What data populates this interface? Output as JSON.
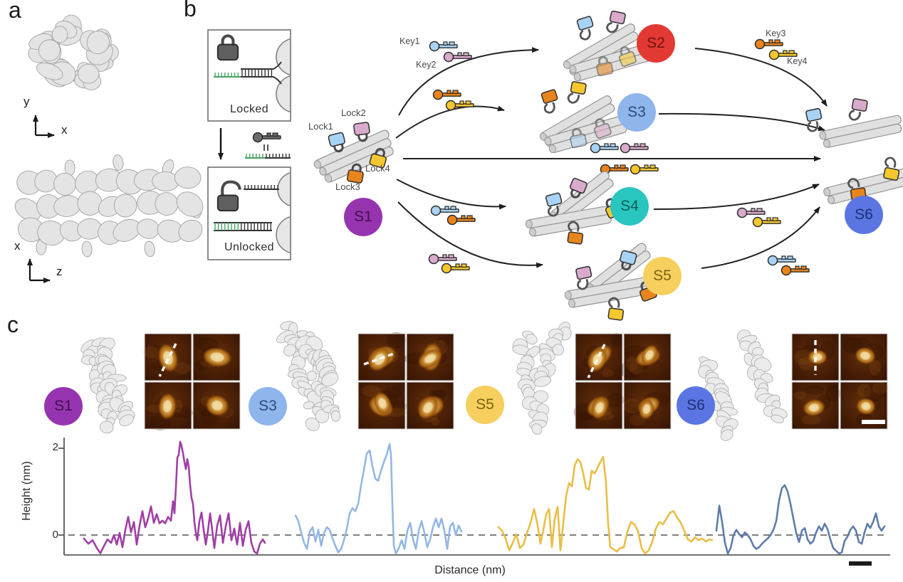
{
  "figure": {
    "panel_a_label": "a",
    "panel_b_label": "b",
    "panel_c_label": "c",
    "background": "#ffffff"
  },
  "panel_a": {
    "top_axes": {
      "vertical": "y",
      "horizontal": "x"
    },
    "bottom_axes": {
      "vertical": "x",
      "horizontal": "z"
    }
  },
  "panel_b": {
    "locked_box": {
      "label": "Locked"
    },
    "unlocked_box": {
      "label": "Unlocked"
    },
    "key_legend_equivalence": "=",
    "toehold_color": "#47a566",
    "locks": [
      {
        "label": "Lock1",
        "color": "#a9d3f4"
      },
      {
        "label": "Lock2",
        "color": "#d8aacb"
      },
      {
        "label": "Lock3",
        "color": "#e8841c"
      },
      {
        "label": "Lock4",
        "color": "#f4c72e"
      }
    ],
    "keys": [
      {
        "label": "Key1",
        "color": "#a9d3f4"
      },
      {
        "label": "Key2",
        "color": "#d8aacb"
      },
      {
        "label": "Key3",
        "color": "#e8841c"
      },
      {
        "label": "Key4",
        "color": "#f4c72e"
      }
    ],
    "states": [
      {
        "id": "S1",
        "color": "#9634af",
        "label_color": "#40104d"
      },
      {
        "id": "S2",
        "color": "#e23a33",
        "label_color": "#6e1511"
      },
      {
        "id": "S3",
        "color": "#8fb5ed",
        "label_color": "#2c4a7c"
      },
      {
        "id": "S4",
        "color": "#29c5bf",
        "label_color": "#0b5f5b"
      },
      {
        "id": "S5",
        "color": "#f6cf5e",
        "label_color": "#7c6011"
      },
      {
        "id": "S6",
        "color": "#5b76e2",
        "label_color": "#1d2f72"
      }
    ]
  },
  "panel_c": {
    "afm_scalebar": true,
    "profile_scalebar": true
  },
  "chart_data": {
    "type": "line",
    "title": "",
    "xlabel": "Distance (nm)",
    "ylabel": "Height (nm)",
    "ytick_labels": [
      "2",
      "0"
    ],
    "ytick_values": [
      2,
      0
    ],
    "ylim": [
      -0.8,
      2.4
    ],
    "zero_baseline_dashed": true,
    "x_scalebar": true,
    "legend": "none",
    "series": [
      {
        "name": "S1",
        "color": "#a03fa5",
        "points": [
          [
            118,
            -0.08
          ],
          [
            124,
            -0.2
          ],
          [
            130,
            -0.12
          ],
          [
            136,
            -0.3
          ],
          [
            141,
            -0.42
          ],
          [
            146,
            -0.25
          ],
          [
            151,
            -0.1
          ],
          [
            156,
            -0.18
          ],
          [
            160,
            0.0
          ],
          [
            164,
            -0.22
          ],
          [
            168,
            0.05
          ],
          [
            172,
            -0.28
          ],
          [
            176,
            0.12
          ],
          [
            180,
            0.42
          ],
          [
            184,
            0.06
          ],
          [
            188,
            0.3
          ],
          [
            192,
            -0.22
          ],
          [
            196,
            0.22
          ],
          [
            200,
            0.55
          ],
          [
            204,
            0.18
          ],
          [
            208,
            0.38
          ],
          [
            212,
            0.66
          ],
          [
            216,
            0.28
          ],
          [
            220,
            0.48
          ],
          [
            224,
            0.27
          ],
          [
            228,
            0.33
          ],
          [
            232,
            0.27
          ],
          [
            236,
            0.42
          ],
          [
            240,
            0.33
          ],
          [
            243,
            0.78
          ],
          [
            245,
            0.5
          ],
          [
            247,
            1.1
          ],
          [
            249,
            1.78
          ],
          [
            251,
            1.85
          ],
          [
            253,
            2.15
          ],
          [
            255,
            2.05
          ],
          [
            257,
            1.88
          ],
          [
            259,
            1.68
          ],
          [
            261,
            1.52
          ],
          [
            263,
            1.75
          ],
          [
            265,
            1.58
          ],
          [
            267,
            1.15
          ],
          [
            269,
            0.85
          ],
          [
            271,
            0.72
          ],
          [
            273,
            0.3
          ],
          [
            275,
            0.05
          ],
          [
            277,
            -0.12
          ],
          [
            280,
            0.32
          ],
          [
            283,
            0.52
          ],
          [
            286,
            0.12
          ],
          [
            289,
            -0.22
          ],
          [
            292,
            0.1
          ],
          [
            295,
            0.5
          ],
          [
            298,
            0.12
          ],
          [
            301,
            -0.3
          ],
          [
            305,
            0.22
          ],
          [
            309,
            0.45
          ],
          [
            313,
            -0.18
          ],
          [
            317,
            0.2
          ],
          [
            321,
            0.5
          ],
          [
            325,
            -0.12
          ],
          [
            329,
            0.15
          ],
          [
            333,
            -0.22
          ],
          [
            337,
            0.28
          ],
          [
            341,
            -0.25
          ],
          [
            345,
            0.12
          ],
          [
            349,
            0.32
          ],
          [
            353,
            -0.18
          ],
          [
            357,
            -0.38
          ],
          [
            361,
            -0.48
          ],
          [
            365,
            -0.2
          ],
          [
            369,
            -0.1
          ],
          [
            372,
            -0.18
          ]
        ]
      },
      {
        "name": "S3",
        "color": "#94b7e4",
        "points": [
          [
            415,
            0.45
          ],
          [
            419,
            0.32
          ],
          [
            423,
            0.05
          ],
          [
            427,
            -0.18
          ],
          [
            431,
            -0.32
          ],
          [
            435,
            0.08
          ],
          [
            439,
            0.18
          ],
          [
            443,
            -0.15
          ],
          [
            447,
            0.12
          ],
          [
            451,
            -0.25
          ],
          [
            455,
            0.05
          ],
          [
            459,
            0.18
          ],
          [
            463,
            0.12
          ],
          [
            467,
            -0.08
          ],
          [
            471,
            -0.25
          ],
          [
            475,
            -0.4
          ],
          [
            479,
            -0.32
          ],
          [
            483,
            -0.12
          ],
          [
            487,
            0.15
          ],
          [
            491,
            0.5
          ],
          [
            495,
            0.62
          ],
          [
            499,
            0.55
          ],
          [
            503,
            0.72
          ],
          [
            507,
            1.15
          ],
          [
            511,
            1.5
          ],
          [
            515,
            1.88
          ],
          [
            519,
            1.95
          ],
          [
            523,
            1.58
          ],
          [
            527,
            1.3
          ],
          [
            531,
            1.25
          ],
          [
            535,
            1.48
          ],
          [
            539,
            1.68
          ],
          [
            543,
            1.85
          ],
          [
            547,
            2.1
          ],
          [
            549,
            1.85
          ],
          [
            551,
            0.7
          ],
          [
            553,
            -0.25
          ],
          [
            556,
            -0.48
          ],
          [
            560,
            -0.3
          ],
          [
            564,
            -0.12
          ],
          [
            568,
            -0.32
          ],
          [
            572,
            0.1
          ],
          [
            576,
            0.28
          ],
          [
            580,
            -0.1
          ],
          [
            584,
            -0.32
          ],
          [
            588,
            0.1
          ],
          [
            592,
            0.32
          ],
          [
            596,
            0.05
          ],
          [
            600,
            -0.28
          ],
          [
            604,
            -0.1
          ],
          [
            608,
            0.18
          ],
          [
            612,
            0.38
          ],
          [
            616,
            0.18
          ],
          [
            620,
            0.38
          ],
          [
            624,
            0.1
          ],
          [
            628,
            -0.32
          ],
          [
            632,
            0.2
          ],
          [
            636,
            0.28
          ],
          [
            640,
            0.0
          ],
          [
            644,
            0.22
          ],
          [
            648,
            0.08
          ]
        ]
      },
      {
        "name": "S5",
        "color": "#e9be45",
        "points": [
          [
            700,
            0.18
          ],
          [
            705,
            0.1
          ],
          [
            710,
            -0.08
          ],
          [
            715,
            -0.35
          ],
          [
            720,
            -0.18
          ],
          [
            725,
            0.02
          ],
          [
            730,
            -0.3
          ],
          [
            735,
            -0.22
          ],
          [
            740,
            0.05
          ],
          [
            745,
            0.28
          ],
          [
            750,
            0.6
          ],
          [
            755,
            0.22
          ],
          [
            759,
            -0.2
          ],
          [
            763,
            0.12
          ],
          [
            767,
            0.48
          ],
          [
            771,
            0.6
          ],
          [
            775,
            -0.28
          ],
          [
            779,
            0.38
          ],
          [
            783,
            0.65
          ],
          [
            787,
            -0.35
          ],
          [
            791,
            0.28
          ],
          [
            795,
            0.9
          ],
          [
            799,
            1.2
          ],
          [
            803,
            1.12
          ],
          [
            807,
            1.6
          ],
          [
            811,
            1.75
          ],
          [
            815,
            1.68
          ],
          [
            819,
            1.42
          ],
          [
            823,
            1.08
          ],
          [
            827,
            1.05
          ],
          [
            831,
            1.48
          ],
          [
            835,
            1.42
          ],
          [
            839,
            1.55
          ],
          [
            843,
            1.68
          ],
          [
            847,
            1.8
          ],
          [
            851,
            1.2
          ],
          [
            854,
            0.25
          ],
          [
            857,
            -0.28
          ],
          [
            861,
            -0.32
          ],
          [
            866,
            -0.38
          ],
          [
            871,
            -0.3
          ],
          [
            876,
            -0.28
          ],
          [
            881,
            0.08
          ],
          [
            886,
            0.3
          ],
          [
            891,
            0.25
          ],
          [
            896,
            0.08
          ],
          [
            901,
            -0.3
          ],
          [
            906,
            -0.45
          ],
          [
            911,
            -0.35
          ],
          [
            916,
            -0.15
          ],
          [
            921,
            0.15
          ],
          [
            926,
            0.3
          ],
          [
            931,
            0.25
          ],
          [
            936,
            0.38
          ],
          [
            941,
            0.52
          ],
          [
            946,
            0.55
          ],
          [
            951,
            0.4
          ],
          [
            956,
            0.28
          ],
          [
            961,
            0.1
          ],
          [
            966,
            -0.1
          ],
          [
            971,
            -0.15
          ],
          [
            976,
            -0.05
          ],
          [
            981,
            -0.12
          ],
          [
            986,
            -0.08
          ],
          [
            991,
            -0.15
          ],
          [
            996,
            -0.1
          ],
          [
            1000,
            -0.12
          ]
        ]
      },
      {
        "name": "S6",
        "color": "#5f7cab",
        "points": [
          [
            1006,
            0.1
          ],
          [
            1010,
            0.68
          ],
          [
            1014,
            0.3
          ],
          [
            1018,
            -0.18
          ],
          [
            1022,
            -0.52
          ],
          [
            1026,
            -0.3
          ],
          [
            1030,
            0.0
          ],
          [
            1034,
            0.12
          ],
          [
            1038,
            0.02
          ],
          [
            1042,
            -0.05
          ],
          [
            1046,
            0.06
          ],
          [
            1050,
            0.0
          ],
          [
            1054,
            -0.1
          ],
          [
            1058,
            -0.25
          ],
          [
            1062,
            -0.32
          ],
          [
            1066,
            -0.28
          ],
          [
            1070,
            -0.2
          ],
          [
            1074,
            -0.14
          ],
          [
            1078,
            -0.08
          ],
          [
            1082,
            0.0
          ],
          [
            1086,
            0.12
          ],
          [
            1090,
            0.32
          ],
          [
            1094,
            0.8
          ],
          [
            1098,
            1.08
          ],
          [
            1102,
            1.15
          ],
          [
            1106,
            1.0
          ],
          [
            1110,
            0.72
          ],
          [
            1114,
            0.38
          ],
          [
            1118,
            0.05
          ],
          [
            1122,
            -0.16
          ],
          [
            1126,
            0.1
          ],
          [
            1130,
            0.16
          ],
          [
            1134,
            -0.1
          ],
          [
            1138,
            -0.2
          ],
          [
            1142,
            -0.14
          ],
          [
            1146,
            0.06
          ],
          [
            1150,
            0.2
          ],
          [
            1154,
            0.1
          ],
          [
            1158,
            0.26
          ],
          [
            1162,
            0.14
          ],
          [
            1166,
            -0.1
          ],
          [
            1170,
            -0.3
          ],
          [
            1174,
            -0.36
          ],
          [
            1178,
            -0.58
          ],
          [
            1182,
            -0.4
          ],
          [
            1186,
            -0.14
          ],
          [
            1190,
            -0.04
          ],
          [
            1194,
            0.12
          ],
          [
            1198,
            0.2
          ],
          [
            1202,
            0.1
          ],
          [
            1206,
            -0.16
          ],
          [
            1210,
            -0.2
          ],
          [
            1214,
            0.06
          ],
          [
            1218,
            0.26
          ],
          [
            1222,
            0.16
          ],
          [
            1226,
            0.3
          ],
          [
            1230,
            0.5
          ],
          [
            1234,
            0.2
          ],
          [
            1238,
            0.1
          ],
          [
            1242,
            0.2
          ]
        ]
      }
    ]
  }
}
